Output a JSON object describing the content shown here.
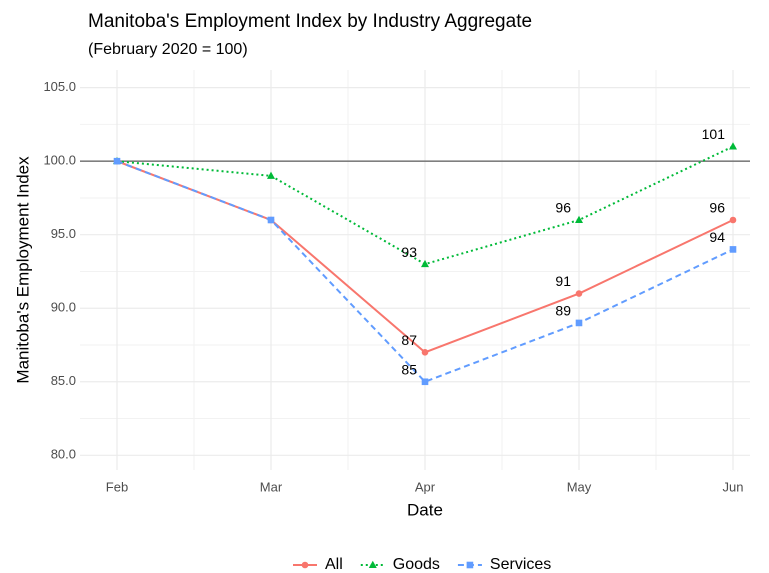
{
  "chart_data": {
    "type": "line",
    "title": "Manitoba's Employment Index by Industry Aggregate",
    "subtitle": "(February 2020 = 100)",
    "x_label": "Date",
    "y_label": "Manitoba's Employment Index",
    "categories": [
      "Feb",
      "Mar",
      "Apr",
      "May",
      "Jun"
    ],
    "series": [
      {
        "name": "All",
        "color": "#F8766D",
        "dash": "solid",
        "marker": "circle",
        "values": [
          100,
          96,
          87,
          91,
          96
        ],
        "value_labels": [
          null,
          null,
          "87",
          "91",
          "96"
        ]
      },
      {
        "name": "Goods",
        "color": "#00BA38",
        "dash": "dotted",
        "marker": "triangle",
        "values": [
          100,
          99,
          93,
          96,
          101
        ],
        "value_labels": [
          null,
          null,
          "93",
          "96",
          "101"
        ]
      },
      {
        "name": "Services",
        "color": "#619CFF",
        "dash": "dashed",
        "marker": "square",
        "values": [
          100,
          96,
          85,
          89,
          94
        ],
        "value_labels": [
          null,
          null,
          "85",
          "89",
          "94"
        ]
      }
    ],
    "ylim": [
      79,
      106.2
    ],
    "yticks": [
      {
        "value": 80,
        "label": "80.0"
      },
      {
        "value": 85,
        "label": "85.0"
      },
      {
        "value": 90,
        "label": "90.0"
      },
      {
        "value": 95,
        "label": "95.0"
      },
      {
        "value": 100,
        "label": "100.0"
      },
      {
        "value": 105,
        "label": "105.0"
      }
    ],
    "hline": 100,
    "grid": true,
    "legend": "bottom"
  }
}
